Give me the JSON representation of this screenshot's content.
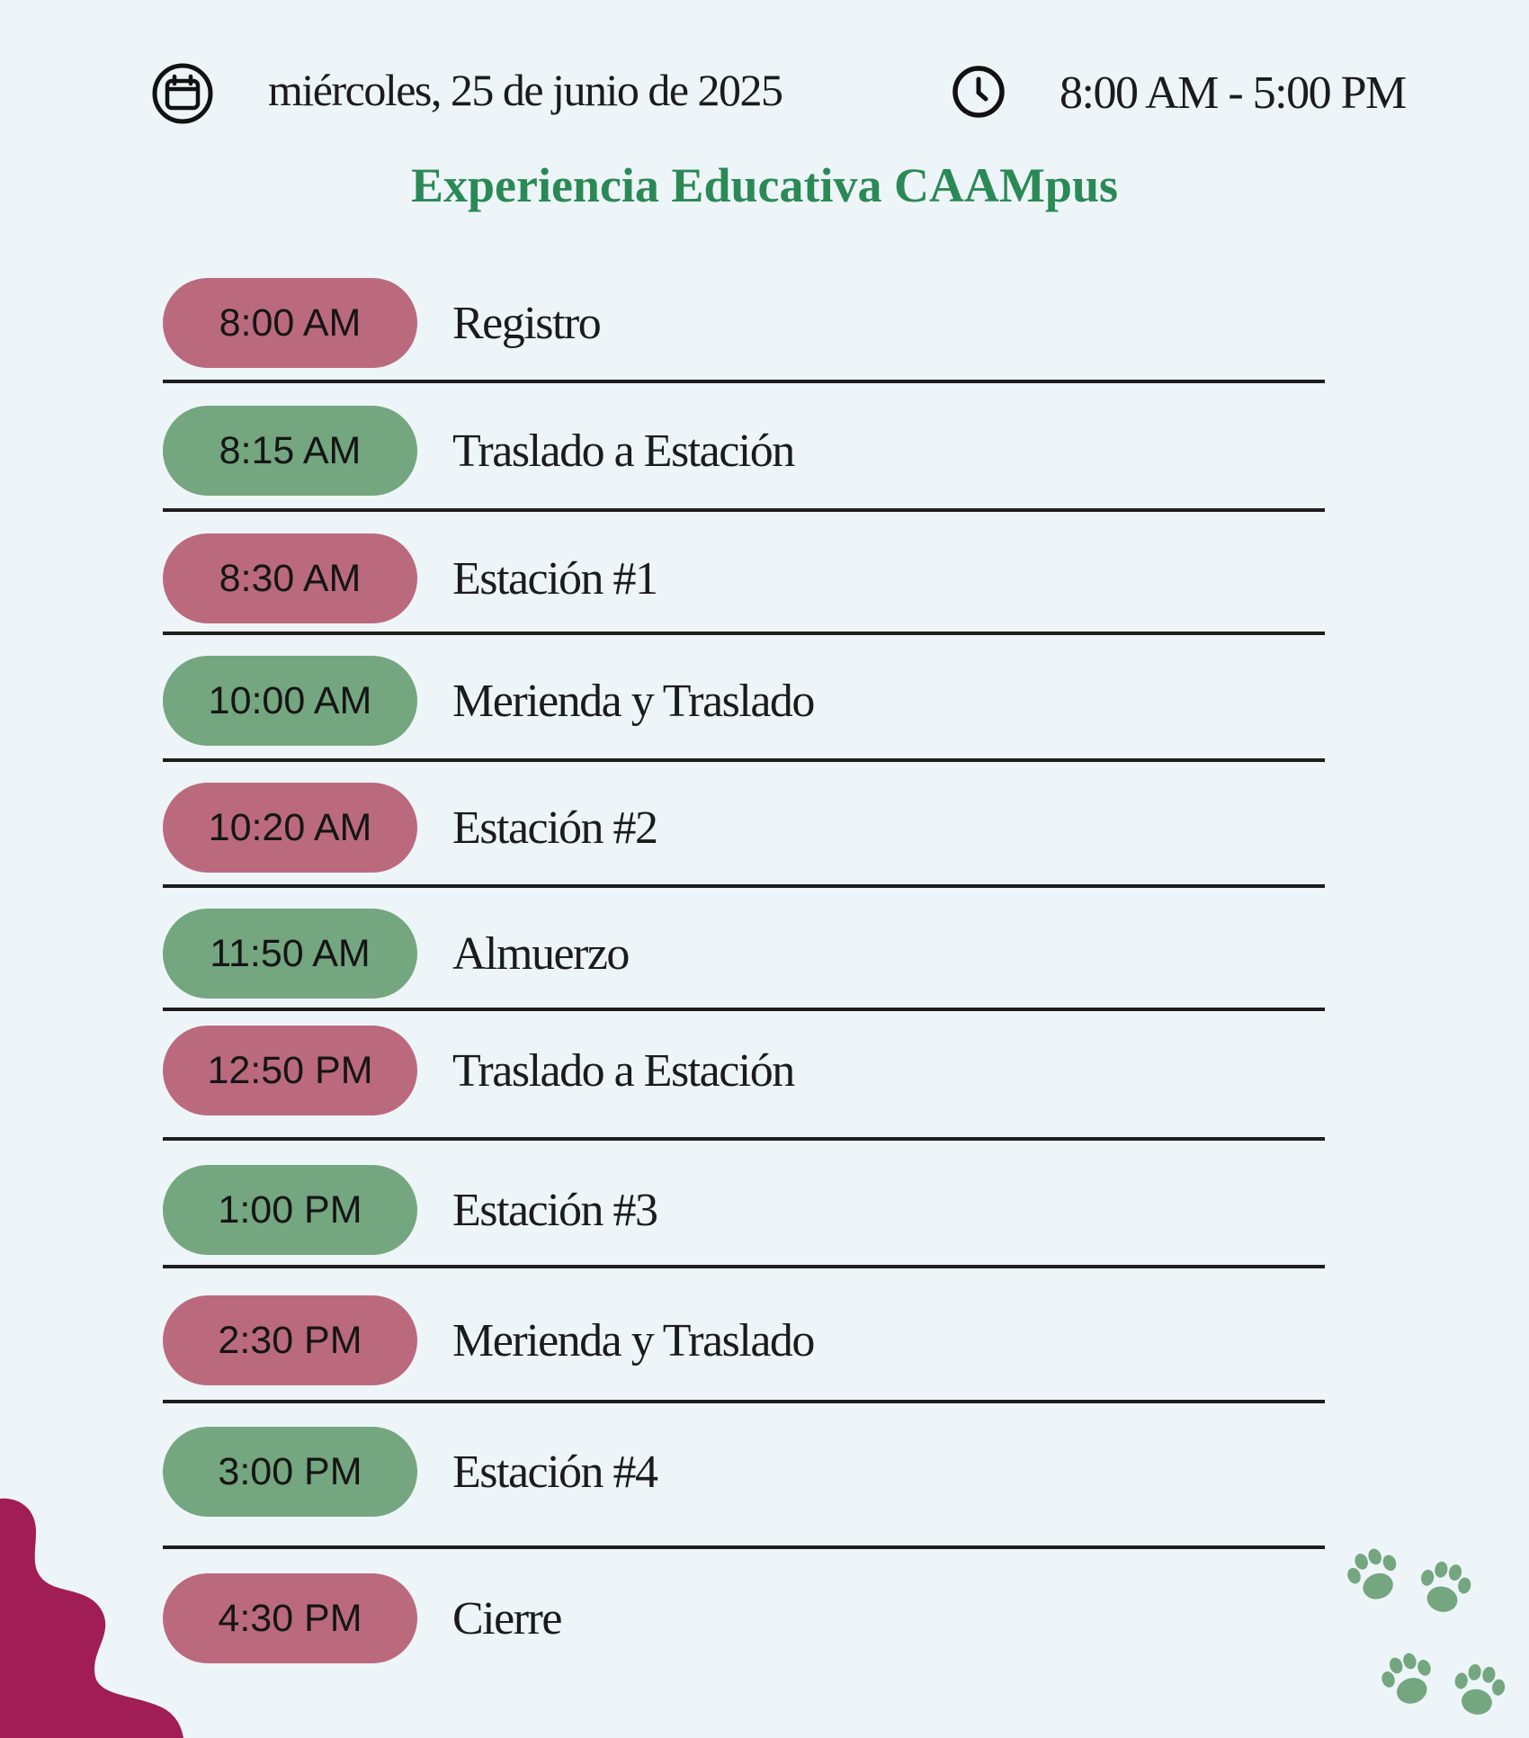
{
  "header": {
    "date": "miércoles, 25 de junio de 2025",
    "hours": "8:00 AM - 5:00 PM",
    "calendar_icon": "calendar-icon",
    "clock_icon": "clock-icon"
  },
  "title": "Experiencia Educativa CAAMpus",
  "colors": {
    "background": "#eef5f9",
    "title_green": "#2a8a55",
    "pill_rose": "#bb6a7e",
    "pill_sage": "#74a67f",
    "blob_magenta": "#a11d55",
    "paw_green": "#74a67f"
  },
  "schedule": [
    {
      "time": "8:00 AM",
      "activity": "Registro",
      "color": "rose"
    },
    {
      "time": "8:15 AM",
      "activity": "Traslado a Estación",
      "color": "sage"
    },
    {
      "time": "8:30 AM",
      "activity": "Estación #1",
      "color": "rose"
    },
    {
      "time": "10:00 AM",
      "activity": "Merienda y Traslado",
      "color": "sage"
    },
    {
      "time": "10:20 AM",
      "activity": "Estación #2",
      "color": "rose"
    },
    {
      "time": "11:50 AM",
      "activity": "Almuerzo",
      "color": "sage"
    },
    {
      "time": "12:50 PM",
      "activity": "Traslado a Estación",
      "color": "rose"
    },
    {
      "time": "1:00 PM",
      "activity": "Estación #3",
      "color": "sage"
    },
    {
      "time": "2:30 PM",
      "activity": "Merienda y Traslado",
      "color": "rose"
    },
    {
      "time": "3:00 PM",
      "activity": "Estación #4",
      "color": "sage"
    },
    {
      "time": "4:30 PM",
      "activity": "Cierre",
      "color": "rose"
    }
  ],
  "decorations": {
    "paw_icon": "paw-print-icon",
    "corner": "magenta-corner-blob"
  }
}
